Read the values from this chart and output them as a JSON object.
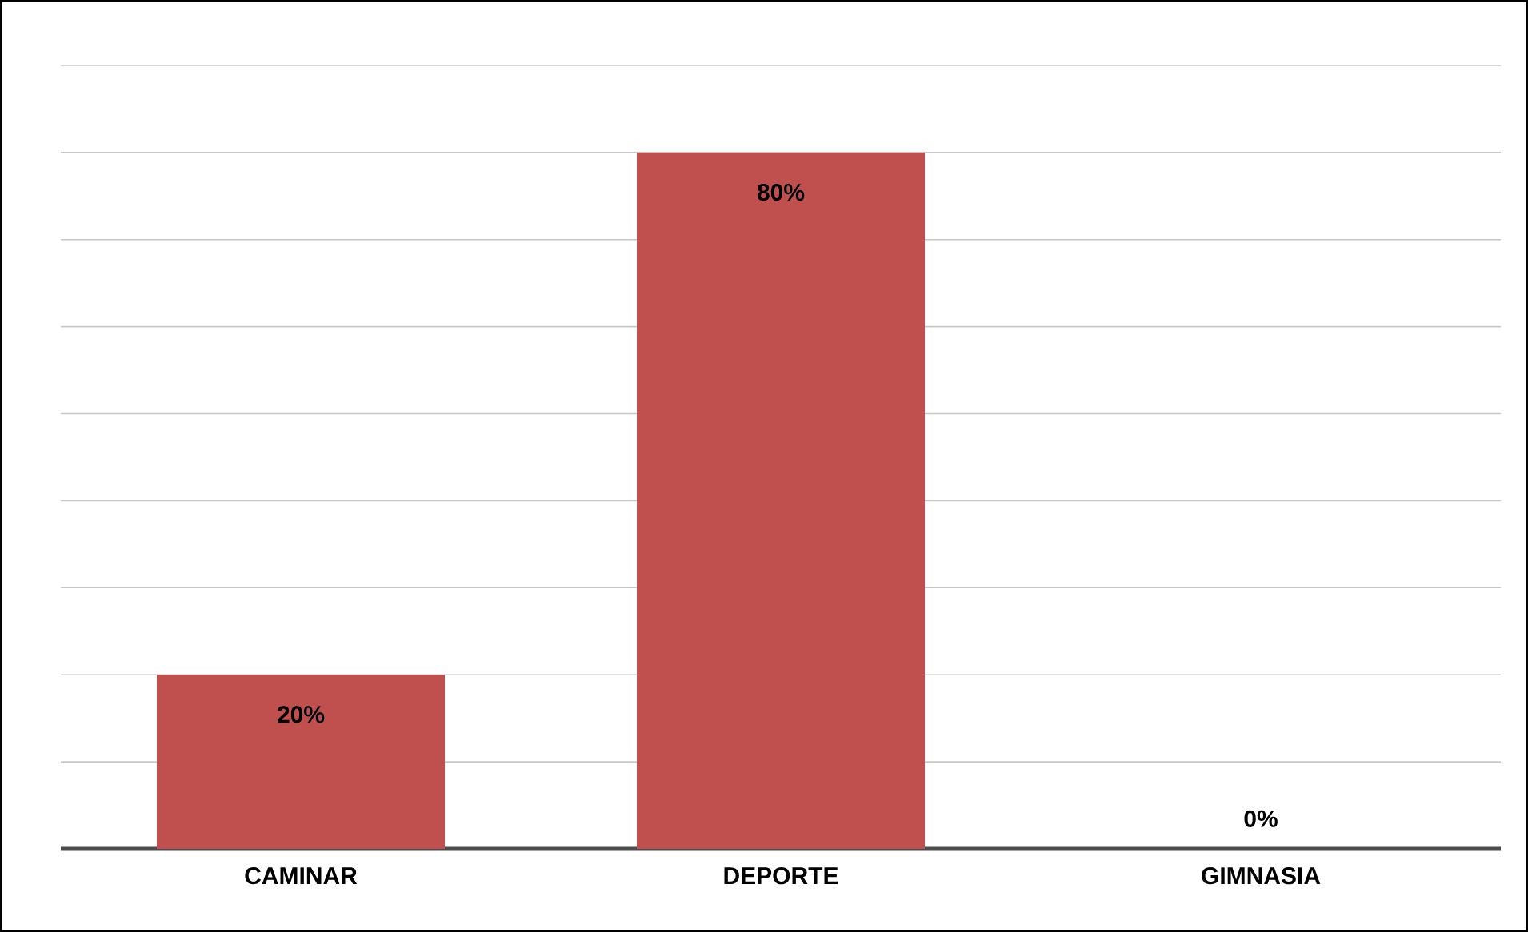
{
  "chart_data": {
    "type": "bar",
    "categories": [
      "CAMINAR",
      "DEPORTE",
      "GIMNASIA"
    ],
    "values": [
      20,
      80,
      0
    ],
    "color": "#c0504d",
    "value_labels": [
      "20%",
      "80%",
      "0%"
    ],
    "ylim": [
      0,
      90
    ],
    "yticks": [
      {
        "value": 0,
        "label": null
      },
      {
        "value": 10,
        "label": null
      },
      {
        "value": 20,
        "label": null
      },
      {
        "value": 30,
        "label": null
      },
      {
        "value": 40,
        "label": null
      },
      {
        "value": 50,
        "label": null
      },
      {
        "value": 60,
        "label": null
      },
      {
        "value": 70,
        "label": null
      },
      {
        "value": 80,
        "label": null
      },
      {
        "value": 90,
        "label": null
      }
    ],
    "tick_labels": "x",
    "grid": "y"
  }
}
